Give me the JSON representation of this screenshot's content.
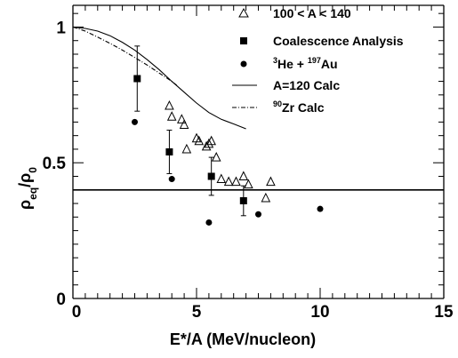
{
  "chart_data": {
    "type": "scatter",
    "xlabel": "E*/A (MeV/nucleon)",
    "ylabel": {
      "main": "ρ",
      "sub1": "eq",
      "sep": "/ρ",
      "sub2": "0"
    },
    "xlim": [
      0,
      15
    ],
    "ylim": [
      0,
      1.08
    ],
    "x_ticks": [
      0,
      5,
      10,
      15
    ],
    "x_tick_labels": [
      "0",
      "5",
      "10",
      "15"
    ],
    "y_ticks": [
      0,
      0.5,
      1
    ],
    "y_tick_labels": [
      "0",
      "0.5",
      "1"
    ],
    "grid": false,
    "legend_position": "top-right",
    "series": [
      {
        "key": "mass",
        "name": "100 < A < 140",
        "marker": "open-triangle",
        "x": [
          3.9,
          4.0,
          4.4,
          4.5,
          4.6,
          5.0,
          5.1,
          5.4,
          5.5,
          5.6,
          5.8,
          6.0,
          6.3,
          6.6,
          6.9,
          7.1,
          7.8,
          8.0
        ],
        "y": [
          0.71,
          0.67,
          0.66,
          0.64,
          0.55,
          0.59,
          0.58,
          0.56,
          0.57,
          0.58,
          0.52,
          0.44,
          0.43,
          0.43,
          0.45,
          0.42,
          0.37,
          0.43
        ]
      },
      {
        "key": "coal",
        "name": "Coalescence Analysis",
        "marker": "filled-square",
        "x": [
          2.6,
          3.9,
          5.6,
          6.9
        ],
        "y": [
          0.81,
          0.54,
          0.45,
          0.36
        ],
        "yerr": [
          0.12,
          0.08,
          0.07,
          0.055
        ]
      },
      {
        "key": "he",
        "name_parts": {
          "sup1": "3",
          "base1": "He + ",
          "sup2": "197",
          "base2": "Au"
        },
        "marker": "filled-circle",
        "x": [
          2.5,
          4.0,
          5.5,
          7.5,
          10.0
        ],
        "y": [
          0.65,
          0.44,
          0.28,
          0.31,
          0.33
        ]
      },
      {
        "key": "a120",
        "name": "A=120 Calc",
        "line": "solid",
        "x": [
          0,
          0.5,
          1.0,
          1.5,
          2.0,
          2.5,
          3.0,
          3.5,
          4.0,
          4.5,
          5.0,
          5.5,
          6.0,
          6.5,
          7.0
        ],
        "y": [
          1.0,
          0.995,
          0.985,
          0.968,
          0.944,
          0.915,
          0.88,
          0.842,
          0.8,
          0.76,
          0.72,
          0.685,
          0.66,
          0.643,
          0.625
        ]
      },
      {
        "key": "zr",
        "name_parts": {
          "sup": "90",
          "base": "Zr Calc"
        },
        "line": "dash-dot",
        "x": [
          0,
          0.5,
          1.0,
          1.5,
          2.0,
          2.5,
          3.0,
          3.5,
          4.0,
          4.2
        ],
        "y": [
          1.0,
          0.985,
          0.963,
          0.94,
          0.915,
          0.888,
          0.86,
          0.83,
          0.8,
          0.785
        ]
      }
    ],
    "reference_line": {
      "y": 0.4
    }
  }
}
